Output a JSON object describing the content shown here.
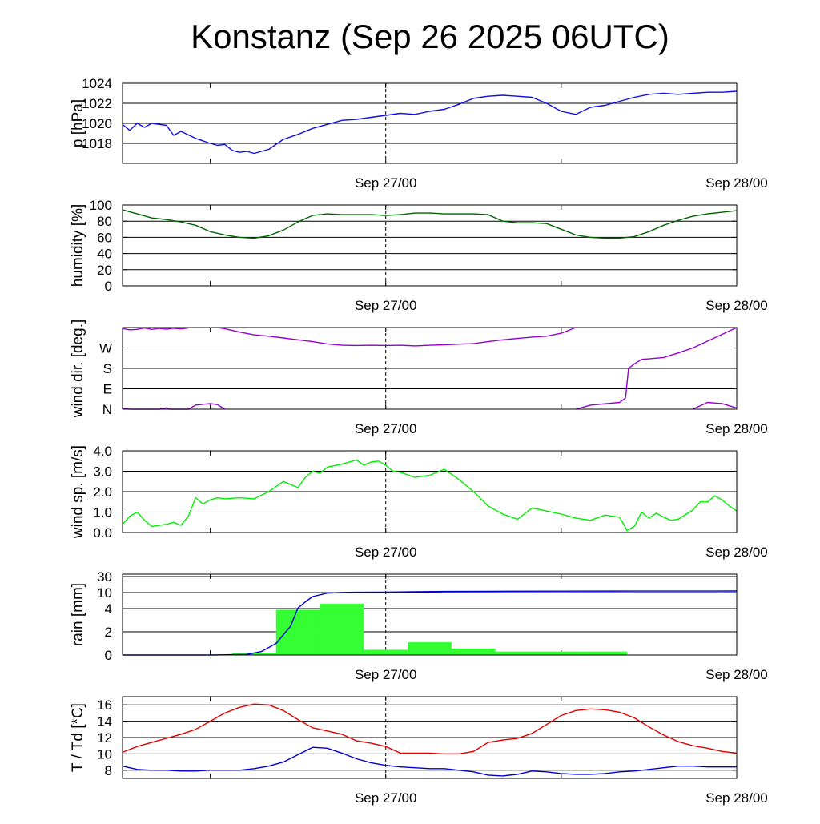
{
  "title": "Konstanz (Sep 26 2025 06UTC)",
  "x_tick_labels": [
    "Sep 27/00",
    "Sep 28/00"
  ],
  "colors": {
    "pressure": "#1010e0",
    "humidity": "#006400",
    "wind_dir": "#9400d3",
    "wind_speed": "#00ee00",
    "rain_bars": "#33ff33",
    "rain_line": "#0000cc",
    "temperature": "#e00000",
    "dewpoint": "#0000cc"
  },
  "chart_data": [
    {
      "type": "line",
      "id": "pressure",
      "ylabel": "p [hPa]",
      "ylim": [
        1016,
        1024
      ],
      "yticks": [
        1018,
        1020,
        1022,
        1024
      ],
      "ytick_labels": [
        "1018",
        "1020",
        "1022",
        "1024"
      ],
      "x_hours_range": [
        0,
        42
      ],
      "series": [
        {
          "name": "pressure",
          "x": [
            0,
            0.5,
            1,
            1.5,
            2,
            3,
            3.5,
            4,
            5,
            6,
            6.5,
            7,
            7.5,
            8,
            8.5,
            9,
            10,
            11,
            12,
            13,
            14,
            15,
            16,
            17,
            18,
            19,
            20,
            21,
            22,
            23,
            24,
            24.5,
            25,
            26,
            27,
            28,
            29,
            30,
            31,
            32,
            33,
            34,
            35,
            36,
            37,
            38,
            39,
            40,
            41,
            42
          ],
          "values": [
            1019.9,
            1019.3,
            1020.0,
            1019.6,
            1020.0,
            1019.8,
            1018.8,
            1019.2,
            1018.5,
            1018.0,
            1017.8,
            1017.9,
            1017.3,
            1017.1,
            1017.2,
            1017.0,
            1017.4,
            1018.4,
            1018.9,
            1019.5,
            1019.9,
            1020.3,
            1020.4,
            1020.6,
            1020.8,
            1021.0,
            1020.9,
            1021.2,
            1021.4,
            1021.9,
            1022.5,
            1022.6,
            1022.7,
            1022.8,
            1022.7,
            1022.6,
            1022.0,
            1021.2,
            1020.9,
            1021.6,
            1021.8,
            1022.2,
            1022.6,
            1022.9,
            1023.0,
            1022.9,
            1023.0,
            1023.1,
            1023.1,
            1023.2
          ]
        }
      ]
    },
    {
      "type": "line",
      "id": "humidity",
      "ylabel": "humidity [%]",
      "ylim": [
        0,
        100
      ],
      "yticks": [
        0,
        20,
        40,
        60,
        80,
        100
      ],
      "ytick_labels": [
        "0",
        "20",
        "40",
        "60",
        "80",
        "100"
      ],
      "x_hours_range": [
        0,
        42
      ],
      "series": [
        {
          "name": "humidity",
          "x": [
            0,
            1,
            2,
            3,
            4,
            5,
            6,
            7,
            8,
            9,
            10,
            11,
            12,
            13,
            14,
            15,
            16,
            17,
            18,
            19,
            20,
            21,
            22,
            23,
            24,
            25,
            26,
            27,
            28,
            29,
            30,
            31,
            32,
            33,
            34,
            35,
            36,
            37,
            38,
            39,
            40,
            41,
            42
          ],
          "values": [
            94,
            89,
            84,
            82,
            79,
            75,
            67,
            63,
            60,
            59,
            62,
            69,
            79,
            87,
            89,
            88,
            88,
            88,
            87,
            88,
            90,
            90,
            89,
            89,
            89,
            88,
            80,
            78,
            78,
            77,
            70,
            63,
            60,
            59,
            59,
            61,
            67,
            75,
            81,
            86,
            89,
            91,
            93
          ]
        }
      ]
    },
    {
      "type": "scatter",
      "id": "wind_dir",
      "ylabel": "wind dir. [deg.]",
      "ylim": [
        0,
        360
      ],
      "yticks": [
        0,
        90,
        180,
        270
      ],
      "ytick_labels": [
        "N",
        "E",
        "S",
        "W"
      ],
      "x_hours_range": [
        0,
        42
      ],
      "series": [
        {
          "name": "wind_dir_a",
          "x": [
            0,
            0.5,
            1,
            1.5,
            2,
            2.5,
            3,
            3.5,
            4,
            4.5
          ],
          "values": [
            355,
            350,
            352,
            358,
            352,
            356,
            353,
            357,
            354,
            358
          ]
        },
        {
          "name": "wind_dir_b",
          "x": [
            6.5,
            7,
            8,
            9,
            10,
            11,
            12,
            13,
            14,
            15,
            16,
            17,
            18,
            19,
            20,
            21,
            22,
            23,
            24,
            25,
            26,
            27,
            28,
            29,
            30,
            31
          ],
          "values": [
            360,
            355,
            340,
            328,
            322,
            314,
            306,
            298,
            288,
            282,
            281,
            282,
            281,
            282,
            279,
            282,
            284,
            287,
            289,
            298,
            306,
            312,
            318,
            322,
            335,
            360
          ]
        },
        {
          "name": "wind_dir_c",
          "x": [
            34.6,
            35,
            35.5,
            36,
            37,
            38,
            39,
            40,
            41,
            42
          ],
          "values": [
            180,
            200,
            220,
            222,
            228,
            248,
            270,
            300,
            330,
            360
          ]
        },
        {
          "name": "wind_dir_d",
          "x": [
            0,
            0.6,
            2.5,
            2.8,
            3,
            3.2,
            4.5,
            5,
            6,
            6.5,
            7
          ],
          "values": [
            2,
            0,
            0,
            2,
            6,
            0,
            0,
            18,
            25,
            20,
            0
          ]
        },
        {
          "name": "wind_dir_e",
          "x": [
            31,
            32,
            33,
            34,
            34.4,
            34.6
          ],
          "values": [
            0,
            18,
            24,
            30,
            50,
            180
          ]
        },
        {
          "name": "wind_dir_f",
          "x": [
            39,
            40,
            41,
            42
          ],
          "values": [
            0,
            30,
            25,
            5
          ]
        }
      ]
    },
    {
      "type": "line",
      "id": "wind_speed",
      "ylabel": "wind sp. [m/s]",
      "ylim": [
        0,
        4
      ],
      "yticks": [
        0,
        1,
        2,
        3,
        4
      ],
      "ytick_labels": [
        "0.0",
        "1.0",
        "2.0",
        "3.0",
        "4.0"
      ],
      "x_hours_range": [
        0,
        42
      ],
      "series": [
        {
          "name": "wind_speed",
          "x": [
            0,
            0.5,
            1,
            1.5,
            2,
            2.5,
            3,
            3.5,
            4,
            4.5,
            5,
            5.5,
            6,
            6.5,
            7,
            8,
            9,
            10,
            11,
            12,
            12.5,
            13,
            13.5,
            14,
            15,
            16,
            16.5,
            17,
            17.5,
            18,
            18.5,
            19,
            20,
            21,
            22,
            23,
            24,
            25,
            26,
            27,
            28,
            29,
            30,
            31,
            32,
            33,
            34,
            34.5,
            35,
            35.5,
            36,
            36.5,
            37,
            37.5,
            38,
            39,
            39.5,
            40,
            40.5,
            41,
            41.5,
            42
          ],
          "values": [
            0.4,
            0.8,
            1.0,
            0.6,
            0.3,
            0.35,
            0.4,
            0.5,
            0.35,
            0.8,
            1.7,
            1.4,
            1.6,
            1.7,
            1.65,
            1.7,
            1.65,
            2.0,
            2.5,
            2.2,
            2.7,
            3.0,
            2.9,
            3.2,
            3.35,
            3.55,
            3.3,
            3.45,
            3.5,
            3.3,
            3.0,
            2.95,
            2.7,
            2.8,
            3.1,
            2.6,
            2.0,
            1.3,
            0.9,
            0.65,
            1.2,
            1.05,
            0.9,
            0.7,
            0.6,
            0.85,
            0.75,
            0.1,
            0.3,
            1.0,
            0.7,
            0.95,
            0.75,
            0.6,
            0.65,
            1.1,
            1.5,
            1.5,
            1.8,
            1.6,
            1.3,
            1.05
          ]
        }
      ]
    },
    {
      "type": "bar",
      "id": "rain",
      "ylabel": "rain [mm]",
      "ylim": [
        0,
        30
      ],
      "yticks": [
        0,
        2,
        4,
        10,
        30
      ],
      "ytick_labels": [
        "0",
        "2",
        "4",
        "10",
        "30"
      ],
      "x_hours_range": [
        0,
        42
      ],
      "bars": {
        "x_start": [
          7.5,
          10.5,
          13.5,
          16.5,
          19.5,
          22.5,
          25.5,
          28.5,
          31.5
        ],
        "x_end": [
          10.5,
          13.5,
          16.5,
          19.5,
          22.5,
          25.5,
          28.5,
          31.5,
          34.5
        ],
        "values": [
          0.15,
          3.9,
          5.8,
          0.45,
          1.1,
          0.55,
          0.3,
          0.3,
          0.3
        ]
      },
      "series": [
        {
          "name": "rain_accumulated",
          "x": [
            0,
            6,
            8.5,
            9.5,
            10.5,
            11.5,
            12,
            12.5,
            13,
            14,
            15,
            16,
            18,
            20,
            22,
            25,
            30,
            35,
            42
          ],
          "values": [
            0,
            0,
            0.05,
            0.3,
            1.0,
            2.5,
            4.2,
            6.5,
            8.5,
            9.8,
            10.2,
            10.4,
            10.6,
            11.0,
            11.4,
            11.6,
            11.8,
            11.9,
            12.0
          ]
        }
      ]
    },
    {
      "type": "line",
      "id": "temperature",
      "ylabel": "T / Td [*C]",
      "ylim": [
        7,
        17
      ],
      "yticks": [
        8,
        10,
        12,
        14,
        16
      ],
      "ytick_labels": [
        "8",
        "10",
        "12",
        "14",
        "16"
      ],
      "x_hours_range": [
        0,
        42
      ],
      "series": [
        {
          "name": "temperature",
          "x": [
            0,
            1,
            2,
            3,
            4,
            5,
            6,
            7,
            8,
            9,
            10,
            11,
            12,
            13,
            14,
            15,
            16,
            17,
            18,
            19,
            20,
            21,
            22,
            23,
            24,
            25,
            26,
            27,
            28,
            29,
            30,
            31,
            32,
            33,
            34,
            35,
            36,
            37,
            38,
            39,
            40,
            41,
            42
          ],
          "values": [
            10.2,
            10.9,
            11.4,
            11.9,
            12.4,
            13.0,
            14.0,
            15.0,
            15.7,
            16.1,
            16.0,
            15.3,
            14.2,
            13.2,
            12.8,
            12.4,
            11.6,
            11.3,
            10.9,
            10.1,
            10.1,
            10.1,
            10.0,
            10.0,
            10.3,
            11.4,
            11.7,
            11.9,
            12.5,
            13.6,
            14.7,
            15.3,
            15.5,
            15.4,
            15.1,
            14.4,
            13.3,
            12.3,
            11.5,
            11.0,
            10.7,
            10.3,
            10.1
          ]
        },
        {
          "name": "dewpoint",
          "x": [
            0,
            1,
            2,
            3,
            4,
            5,
            6,
            7,
            8,
            9,
            10,
            11,
            12,
            13,
            14,
            15,
            16,
            17,
            18,
            19,
            20,
            21,
            22,
            23,
            24,
            25,
            26,
            27,
            28,
            29,
            30,
            31,
            32,
            33,
            34,
            35,
            36,
            37,
            38,
            39,
            40,
            41,
            42
          ],
          "values": [
            8.5,
            8.1,
            8.0,
            8.0,
            7.9,
            7.9,
            8.0,
            8.0,
            8.0,
            8.2,
            8.5,
            9.0,
            9.9,
            10.8,
            10.7,
            10.1,
            9.4,
            8.9,
            8.6,
            8.4,
            8.3,
            8.2,
            8.2,
            8.0,
            7.8,
            7.4,
            7.3,
            7.5,
            7.9,
            7.8,
            7.6,
            7.5,
            7.5,
            7.6,
            7.8,
            7.9,
            8.1,
            8.3,
            8.5,
            8.5,
            8.4,
            8.4,
            8.4
          ]
        }
      ]
    }
  ]
}
